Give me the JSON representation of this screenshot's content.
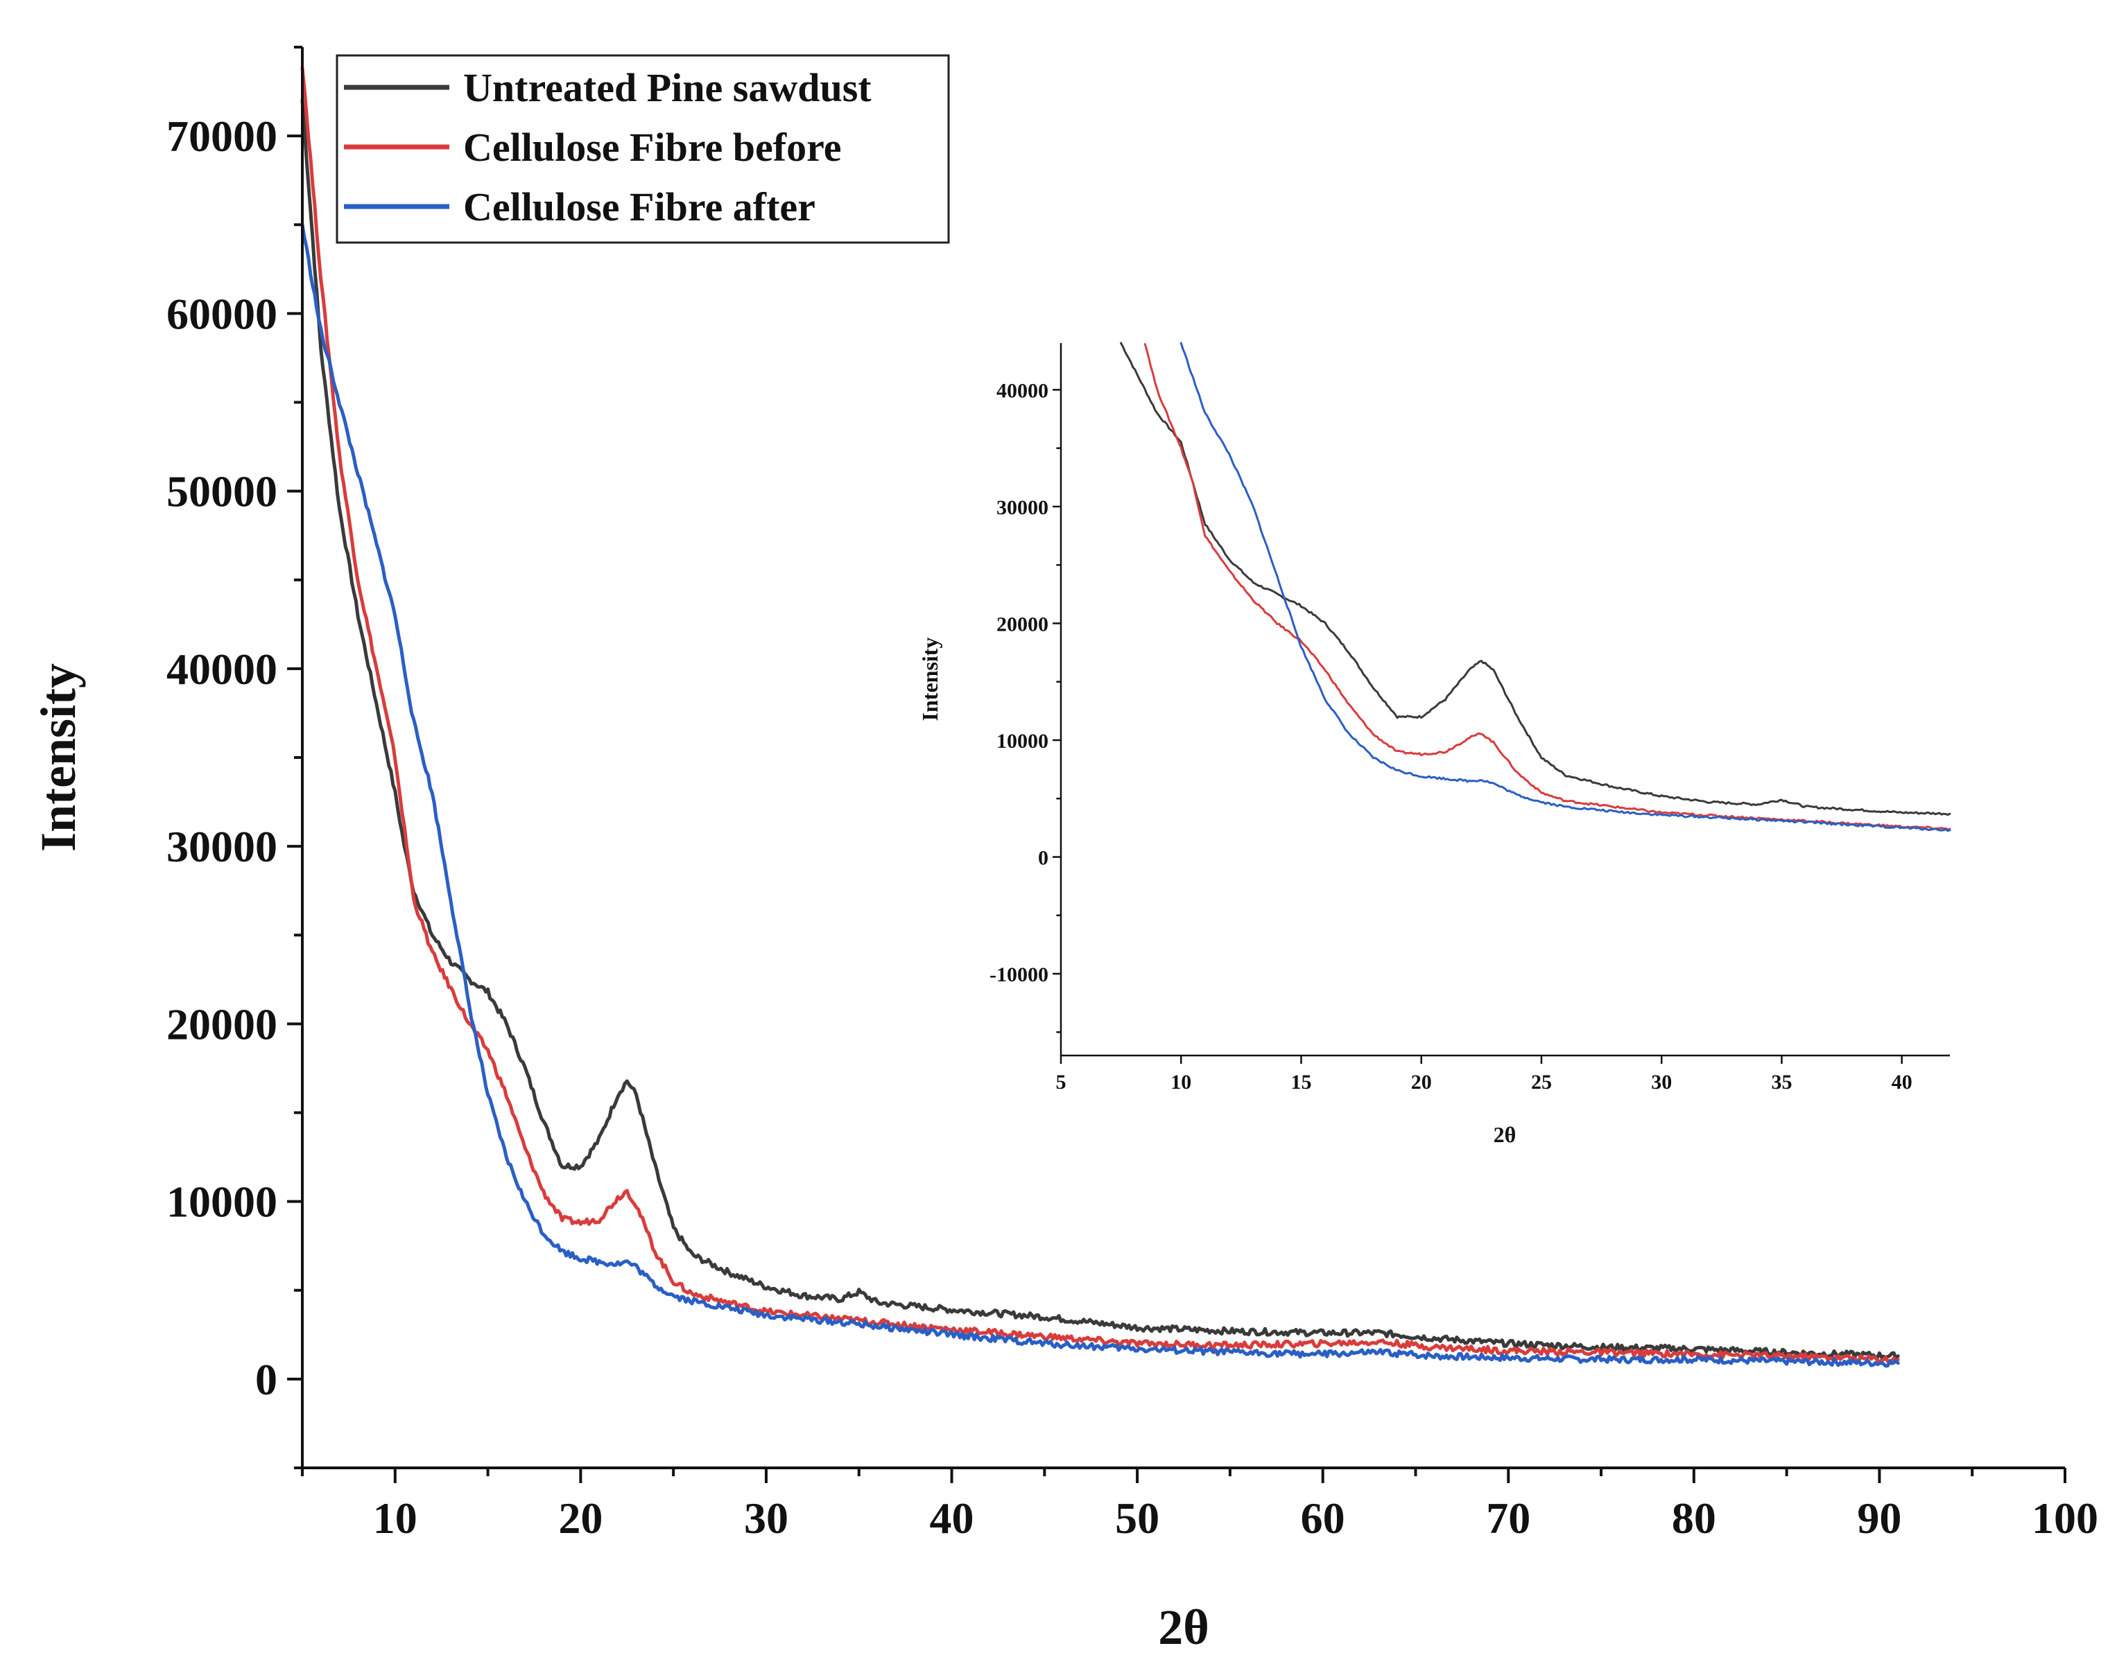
{
  "chart_data": [
    {
      "type": "line",
      "role": "main",
      "title": "",
      "xlabel": "2θ",
      "ylabel": "Intensity",
      "xlim": [
        5,
        100
      ],
      "ylim": [
        -5000,
        75000
      ],
      "xticks": [
        10,
        20,
        30,
        40,
        50,
        60,
        70,
        80,
        90,
        100
      ],
      "xtick_labels": [
        "10",
        "20",
        "30",
        "40",
        "50",
        "60",
        "70",
        "80",
        "90",
        "100"
      ],
      "yticks": [
        0,
        10000,
        20000,
        30000,
        40000,
        50000,
        60000,
        70000
      ],
      "ytick_labels": [
        "0",
        "10000",
        "20000",
        "30000",
        "40000",
        "50000",
        "60000",
        "70000"
      ],
      "grid": false,
      "legend_position": "top-left",
      "series": [
        {
          "name": "Untreated Pine sawdust",
          "color": "#3a3a3a",
          "x": [
            5,
            6,
            7,
            8,
            9,
            10,
            10.5,
            11,
            12,
            13,
            14,
            15,
            16,
            17,
            18,
            19,
            20,
            21,
            22,
            22.5,
            23,
            24,
            25,
            26,
            28,
            30,
            32,
            34,
            35,
            36,
            40,
            45,
            50,
            55,
            60,
            63,
            66,
            70,
            75,
            80,
            85,
            91
          ],
          "values": [
            72000,
            58000,
            49000,
            43000,
            38000,
            33000,
            30000,
            27500,
            25000,
            23500,
            22500,
            21800,
            20000,
            17500,
            14500,
            12000,
            12000,
            13500,
            16000,
            16800,
            16000,
            12000,
            8500,
            7000,
            6000,
            5200,
            4700,
            4500,
            4900,
            4300,
            3900,
            3500,
            2900,
            2700,
            2600,
            2600,
            2300,
            2000,
            1800,
            1700,
            1500,
            1300
          ]
        },
        {
          "name": "Cellulose Fibre before",
          "color": "#d93c3c",
          "x": [
            5,
            6,
            7,
            8,
            9,
            10,
            10.5,
            11,
            12,
            13,
            14,
            15,
            16,
            17,
            18,
            19,
            20,
            21,
            22,
            22.5,
            23,
            24,
            25,
            26,
            28,
            30,
            35,
            40,
            45,
            50,
            55,
            60,
            63,
            66,
            70,
            75,
            80,
            85,
            91
          ],
          "values": [
            74000,
            62000,
            52000,
            45000,
            40000,
            35000,
            31000,
            27000,
            24000,
            22000,
            20000,
            18500,
            16000,
            13000,
            10500,
            9000,
            8800,
            9000,
            10200,
            10600,
            9800,
            7200,
            5500,
            4800,
            4300,
            3800,
            3300,
            2800,
            2400,
            2000,
            1900,
            2000,
            2100,
            1800,
            1600,
            1500,
            1400,
            1300,
            1100
          ]
        },
        {
          "name": "Cellulose Fibre after",
          "color": "#2a5fc4",
          "x": [
            5,
            6,
            7,
            8,
            9,
            10,
            11,
            12,
            13,
            14,
            15,
            16,
            17,
            18,
            19,
            20,
            21,
            22,
            22.5,
            23,
            24,
            25,
            26,
            28,
            30,
            35,
            40,
            45,
            50,
            55,
            60,
            63,
            66,
            70,
            75,
            80,
            85,
            91
          ],
          "values": [
            65000,
            59000,
            55000,
            51000,
            47000,
            43000,
            37000,
            33000,
            27000,
            21000,
            16000,
            12500,
            10000,
            8200,
            7200,
            6800,
            6600,
            6500,
            6600,
            6300,
            5300,
            4700,
            4400,
            4000,
            3600,
            3100,
            2500,
            2000,
            1700,
            1500,
            1400,
            1500,
            1300,
            1200,
            1100,
            1100,
            1000,
            900
          ]
        }
      ]
    },
    {
      "type": "line",
      "role": "inset",
      "title": "",
      "xlabel": "2θ",
      "ylabel": "Intensity",
      "xlim": [
        5,
        42
      ],
      "ylim": [
        -17000,
        44000
      ],
      "xticks": [
        5,
        10,
        15,
        20,
        25,
        30,
        35,
        40
      ],
      "xtick_labels": [
        "5",
        "10",
        "15",
        "20",
        "25",
        "30",
        "35",
        "40"
      ],
      "yticks": [
        -10000,
        0,
        10000,
        20000,
        30000,
        40000
      ],
      "ytick_labels": [
        "-10000",
        "0",
        "10000",
        "20000",
        "30000",
        "40000"
      ],
      "grid": false,
      "legend_position": "none",
      "series": [
        {
          "name": "Untreated Pine sawdust",
          "color": "#3a3a3a",
          "x": [
            7.5,
            8,
            9,
            10,
            10.5,
            11,
            12,
            13,
            14,
            15,
            16,
            17,
            18,
            19,
            20,
            21,
            22,
            22.5,
            23,
            24,
            25,
            26,
            28,
            30,
            32,
            34,
            35,
            36,
            40,
            42
          ],
          "values": [
            44000,
            42000,
            38000,
            35500,
            32000,
            28500,
            25500,
            23500,
            22500,
            21500,
            20000,
            17500,
            14500,
            12000,
            12000,
            13500,
            16000,
            16800,
            16000,
            12000,
            8500,
            7000,
            6000,
            5200,
            4700,
            4500,
            4900,
            4300,
            3800,
            3700
          ]
        },
        {
          "name": "Cellulose Fibre before",
          "color": "#d93c3c",
          "x": [
            8.5,
            9,
            10,
            10.5,
            11,
            12,
            13,
            14,
            15,
            16,
            17,
            18,
            19,
            20,
            21,
            22,
            22.5,
            23,
            24,
            25,
            26,
            28,
            30,
            35,
            40,
            42
          ],
          "values": [
            44000,
            40000,
            35000,
            32000,
            27500,
            24500,
            22000,
            20000,
            18500,
            16000,
            13000,
            10500,
            9000,
            8800,
            9000,
            10200,
            10600,
            9800,
            7200,
            5500,
            4800,
            4300,
            3800,
            3200,
            2600,
            2400
          ]
        },
        {
          "name": "Cellulose Fibre after",
          "color": "#2a5fc4",
          "x": [
            10,
            11,
            12,
            13,
            14,
            15,
            16,
            17,
            18,
            19,
            20,
            21,
            22,
            22.5,
            23,
            24,
            25,
            26,
            28,
            30,
            35,
            40,
            42
          ],
          "values": [
            44000,
            38000,
            34500,
            30000,
            24000,
            18000,
            13500,
            10500,
            8500,
            7400,
            6900,
            6700,
            6500,
            6600,
            6300,
            5300,
            4700,
            4300,
            3900,
            3600,
            3100,
            2500,
            2300
          ]
        }
      ]
    }
  ]
}
